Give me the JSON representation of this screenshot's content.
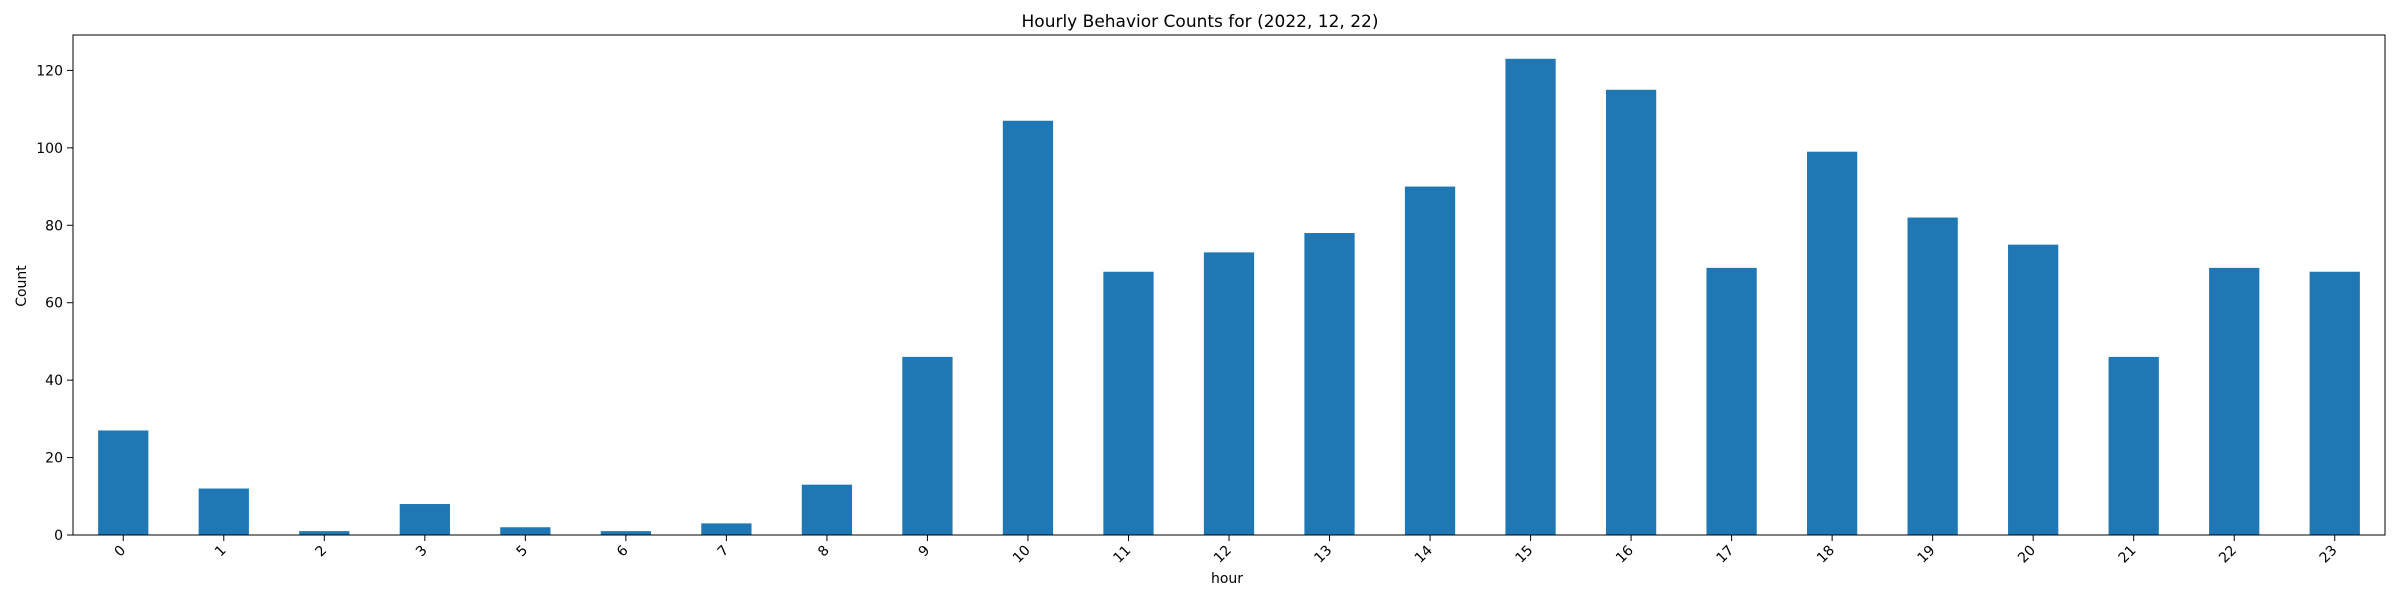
{
  "chart_data": {
    "type": "bar",
    "title": "Hourly Behavior Counts for (2022, 12, 22)",
    "xlabel": "hour",
    "ylabel": "Count",
    "categories": [
      "0",
      "1",
      "2",
      "3",
      "5",
      "6",
      "7",
      "8",
      "9",
      "10",
      "11",
      "12",
      "13",
      "14",
      "15",
      "16",
      "17",
      "18",
      "19",
      "20",
      "21",
      "22",
      "23"
    ],
    "values": [
      27,
      12,
      1,
      8,
      2,
      1,
      3,
      13,
      46,
      107,
      68,
      73,
      78,
      90,
      123,
      115,
      69,
      99,
      82,
      75,
      46,
      69,
      68
    ],
    "ylim": [
      0,
      129.15
    ],
    "yticks": [
      0,
      20,
      40,
      60,
      80,
      100,
      120
    ],
    "grid": false,
    "legend": "none",
    "bar_color": "#1f77b4",
    "x_tick_rotation": 45
  }
}
